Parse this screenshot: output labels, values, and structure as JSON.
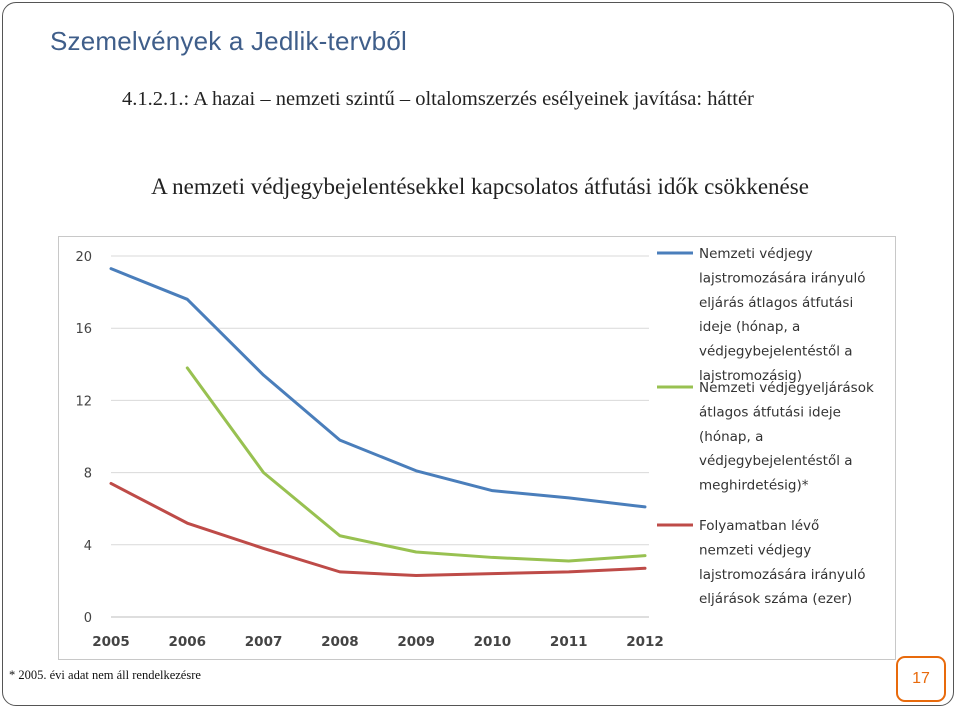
{
  "slide": {
    "title": "Szemelvények a Jedlik-tervből",
    "heading": "4.1.2.1.: A hazai – nemzeti szintű – oltalomszerzés esélyeinek javítása: háttér",
    "chart_heading": "A nemzeti védjegybejelentésekkel kapcsolatos átfutási idők csökkenése",
    "footnote": "* 2005. évi adat nem áll rendelkezésre",
    "page_number": "17"
  },
  "colors": {
    "title": "#3f5e8a",
    "accent": "#e86a0c",
    "series": [
      "#4a7ebb",
      "#98c151",
      "#be4b48"
    ]
  },
  "chart_data": {
    "type": "line",
    "x": [
      "2005",
      "2006",
      "2007",
      "2008",
      "2009",
      "2010",
      "2011",
      "2012"
    ],
    "ylim": [
      0,
      20
    ],
    "yticks": [
      "0",
      "4",
      "8",
      "12",
      "16",
      "20"
    ],
    "grid": "horizontal",
    "legend": "right",
    "series": [
      {
        "name": "Nemzeti védjegy lajstromozására irányuló eljárás átlagos átfutási ideje (hónap, a védjegybejelentéstől a lajstromozásig)",
        "legend_lines": [
          "Nemzeti védjegy",
          "lajstromozására irányuló",
          "eljárás átlagos átfutási",
          "ideje (hónap, a",
          "védjegybejelentéstől a",
          "lajstromozásig)"
        ],
        "values": [
          19.3,
          17.6,
          13.4,
          9.8,
          8.1,
          7.0,
          6.6,
          6.1
        ]
      },
      {
        "name": "Nemzeti védjegyeljárások átlagos átfutási ideje (hónap, a védjegybejelentéstől a meghirdetésig)*",
        "legend_lines": [
          "Nemzeti védjegyeljárások",
          "átlagos átfutási ideje",
          "(hónap, a",
          "védjegybejelentéstől a",
          "meghirdetésig)*"
        ],
        "values": [
          null,
          13.8,
          8.0,
          4.5,
          3.6,
          3.3,
          3.1,
          3.4
        ]
      },
      {
        "name": "Folyamatban lévő nemzeti védjegy lajstromozására irányuló eljárások száma (ezer)",
        "legend_lines": [
          "Folyamatban lévő",
          "nemzeti védjegy",
          "lajstromozására irányuló",
          "eljárások száma (ezer)"
        ],
        "values": [
          7.4,
          5.2,
          3.8,
          2.5,
          2.3,
          2.4,
          2.5,
          2.7
        ]
      }
    ]
  }
}
